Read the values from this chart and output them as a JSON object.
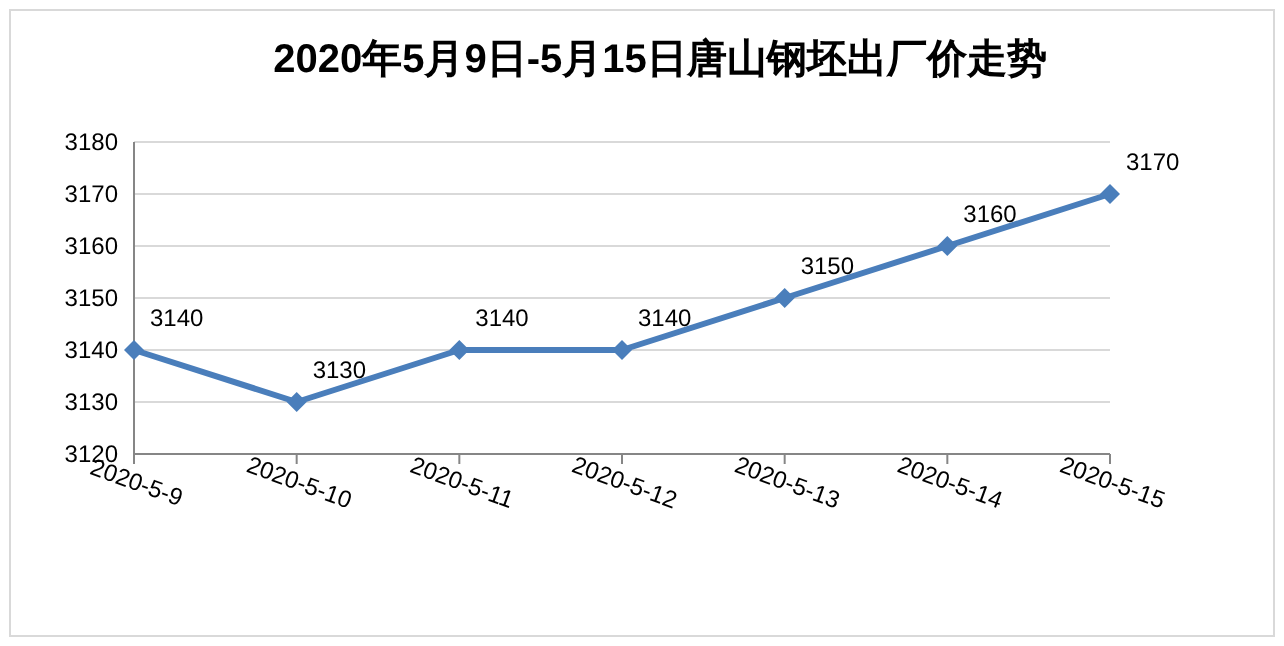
{
  "chart_data": {
    "type": "line",
    "title": "2020年5月9日-5月15日唐山钢坯出厂价走势",
    "categories": [
      "2020-5-9",
      "2020-5-10",
      "2020-5-11",
      "2020-5-12",
      "2020-5-13",
      "2020-5-14",
      "2020-5-15"
    ],
    "values": [
      3140,
      3130,
      3140,
      3140,
      3150,
      3160,
      3170
    ],
    "color": "#4a7ebb",
    "ylim": [
      3120,
      3180
    ],
    "yticks": [
      3120,
      3130,
      3140,
      3150,
      3160,
      3170,
      3180
    ],
    "grid": "y",
    "marker": "diamond",
    "line_style": "solid",
    "data_labels": true
  }
}
